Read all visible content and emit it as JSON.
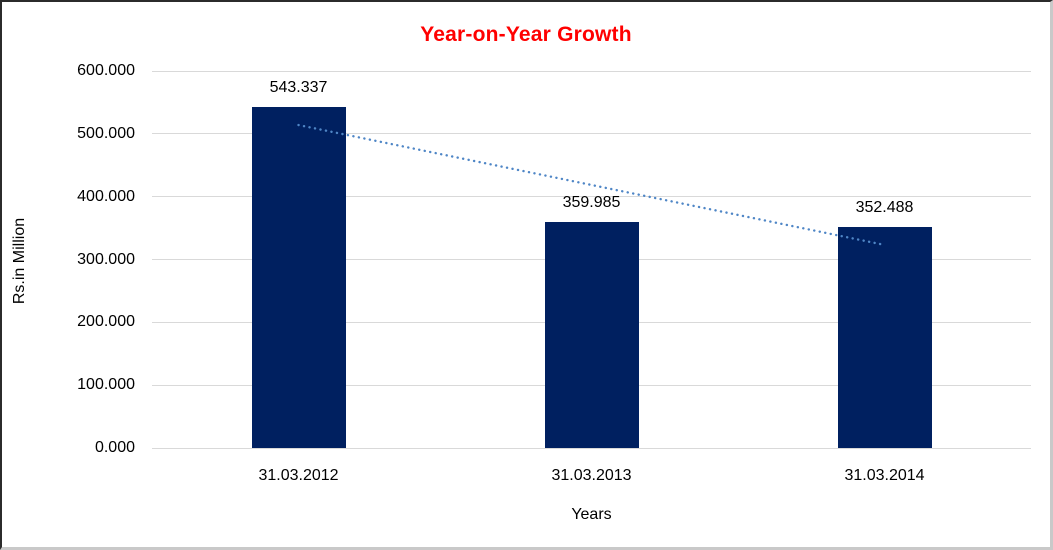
{
  "chart_data": {
    "type": "bar",
    "title": "Year-on-Year Growth",
    "xlabel": "Years",
    "ylabel": "Rs.in Million",
    "categories": [
      "31.03.2012",
      "31.03.2013",
      "31.03.2014"
    ],
    "values": [
      543.337,
      359.985,
      352.488
    ],
    "value_labels": [
      "543.337",
      "359.985",
      "352.488"
    ],
    "ylim": [
      0,
      600
    ],
    "ytick_values": [
      0,
      100,
      200,
      300,
      400,
      500,
      600
    ],
    "ytick_labels": [
      "0.000",
      "100.000",
      "200.000",
      "300.000",
      "400.000",
      "500.000",
      "600.000"
    ],
    "grid": true,
    "legend": "none",
    "trendline": {
      "type": "linear",
      "style": "dotted",
      "start_value": 514.0,
      "end_value": 323.2
    },
    "colors": {
      "bar": "#002060",
      "grid": "#d9d9d9",
      "axis_line": "#d9d9d9",
      "title": "#ff0000",
      "trend": "#4f86c6",
      "text": "#000000"
    }
  }
}
